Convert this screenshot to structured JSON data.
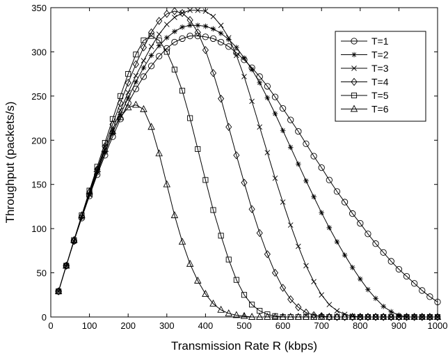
{
  "chart_data": {
    "type": "line",
    "xlabel": "Transmission Rate R (kbps)",
    "ylabel": "Throughput (packets/s)",
    "xlim": [
      0,
      1000
    ],
    "ylim": [
      0,
      350
    ],
    "xticks": [
      0,
      100,
      200,
      300,
      400,
      500,
      600,
      700,
      800,
      900,
      1000
    ],
    "yticks": [
      0,
      50,
      100,
      150,
      200,
      250,
      300,
      350
    ],
    "grid": false,
    "legend_position": "top-right",
    "x": [
      20,
      40,
      60,
      80,
      100,
      120,
      140,
      160,
      180,
      200,
      220,
      240,
      260,
      280,
      300,
      320,
      340,
      360,
      380,
      400,
      420,
      440,
      460,
      480,
      500,
      520,
      540,
      560,
      580,
      600,
      620,
      640,
      660,
      680,
      700,
      720,
      740,
      760,
      780,
      800,
      820,
      840,
      860,
      880,
      900,
      920,
      940,
      960,
      980,
      1000
    ],
    "series": [
      {
        "name": "T=1",
        "marker": "circle",
        "values": [
          29,
          58,
          86,
          112,
          137,
          161,
          183,
          204,
          224,
          242,
          258,
          272,
          284,
          295,
          304,
          311,
          315,
          318,
          318,
          317,
          315,
          311,
          306,
          299,
          291,
          282,
          272,
          261,
          249,
          236,
          223,
          210,
          196,
          182,
          169,
          155,
          142,
          130,
          117,
          106,
          94,
          83,
          73,
          63,
          54,
          46,
          38,
          30,
          23,
          17
        ]
      },
      {
        "name": "T=2",
        "marker": "star",
        "values": [
          29,
          58,
          86,
          113,
          138,
          163,
          186,
          208,
          229,
          248,
          266,
          282,
          296,
          307,
          316,
          323,
          328,
          330,
          330,
          329,
          326,
          321,
          314,
          305,
          293,
          280,
          265,
          248,
          230,
          211,
          192,
          173,
          154,
          136,
          118,
          101,
          85,
          70,
          56,
          43,
          31,
          21,
          12,
          6,
          2,
          0,
          0,
          0,
          0,
          0
        ]
      },
      {
        "name": "T=3",
        "marker": "x",
        "values": [
          29,
          58,
          86,
          113,
          139,
          165,
          189,
          212,
          234,
          254,
          273,
          290,
          306,
          320,
          331,
          339,
          344,
          347,
          347,
          346,
          340,
          330,
          316,
          296,
          272,
          244,
          215,
          186,
          157,
          130,
          104,
          80,
          58,
          40,
          25,
          14,
          7,
          3,
          1,
          0,
          0,
          0,
          0,
          0,
          0,
          0,
          0,
          0,
          0,
          0
        ]
      },
      {
        "name": "T=4",
        "marker": "diamond",
        "values": [
          29,
          58,
          86,
          114,
          141,
          167,
          193,
          218,
          242,
          265,
          286,
          305,
          322,
          335,
          343,
          346,
          344,
          336,
          322,
          302,
          276,
          247,
          215,
          183,
          152,
          122,
          95,
          71,
          50,
          33,
          20,
          11,
          5,
          2,
          1,
          0,
          0,
          0,
          0,
          0,
          0,
          0,
          0,
          0,
          0,
          0,
          0,
          0,
          0,
          0
        ]
      },
      {
        "name": "T=5",
        "marker": "square",
        "values": [
          29,
          58,
          87,
          115,
          143,
          170,
          197,
          224,
          250,
          275,
          297,
          313,
          318,
          313,
          300,
          280,
          256,
          225,
          190,
          155,
          121,
          92,
          65,
          42,
          25,
          14,
          7,
          3,
          1,
          0,
          0,
          0,
          0,
          0,
          0,
          0,
          0,
          0,
          0,
          0,
          0,
          0,
          0,
          0,
          0,
          0,
          0,
          0,
          0,
          0
        ]
      },
      {
        "name": "T=6",
        "marker": "triangle",
        "values": [
          29,
          58,
          87,
          115,
          142,
          167,
          190,
          210,
          226,
          237,
          240,
          235,
          215,
          185,
          150,
          115,
          85,
          60,
          41,
          26,
          15,
          8,
          4,
          2,
          1,
          0,
          0,
          0,
          0,
          0,
          0,
          0,
          0,
          0,
          0,
          0,
          0,
          0,
          0,
          0,
          0,
          0,
          0,
          0,
          0,
          0,
          0,
          0,
          0,
          0
        ]
      }
    ]
  }
}
